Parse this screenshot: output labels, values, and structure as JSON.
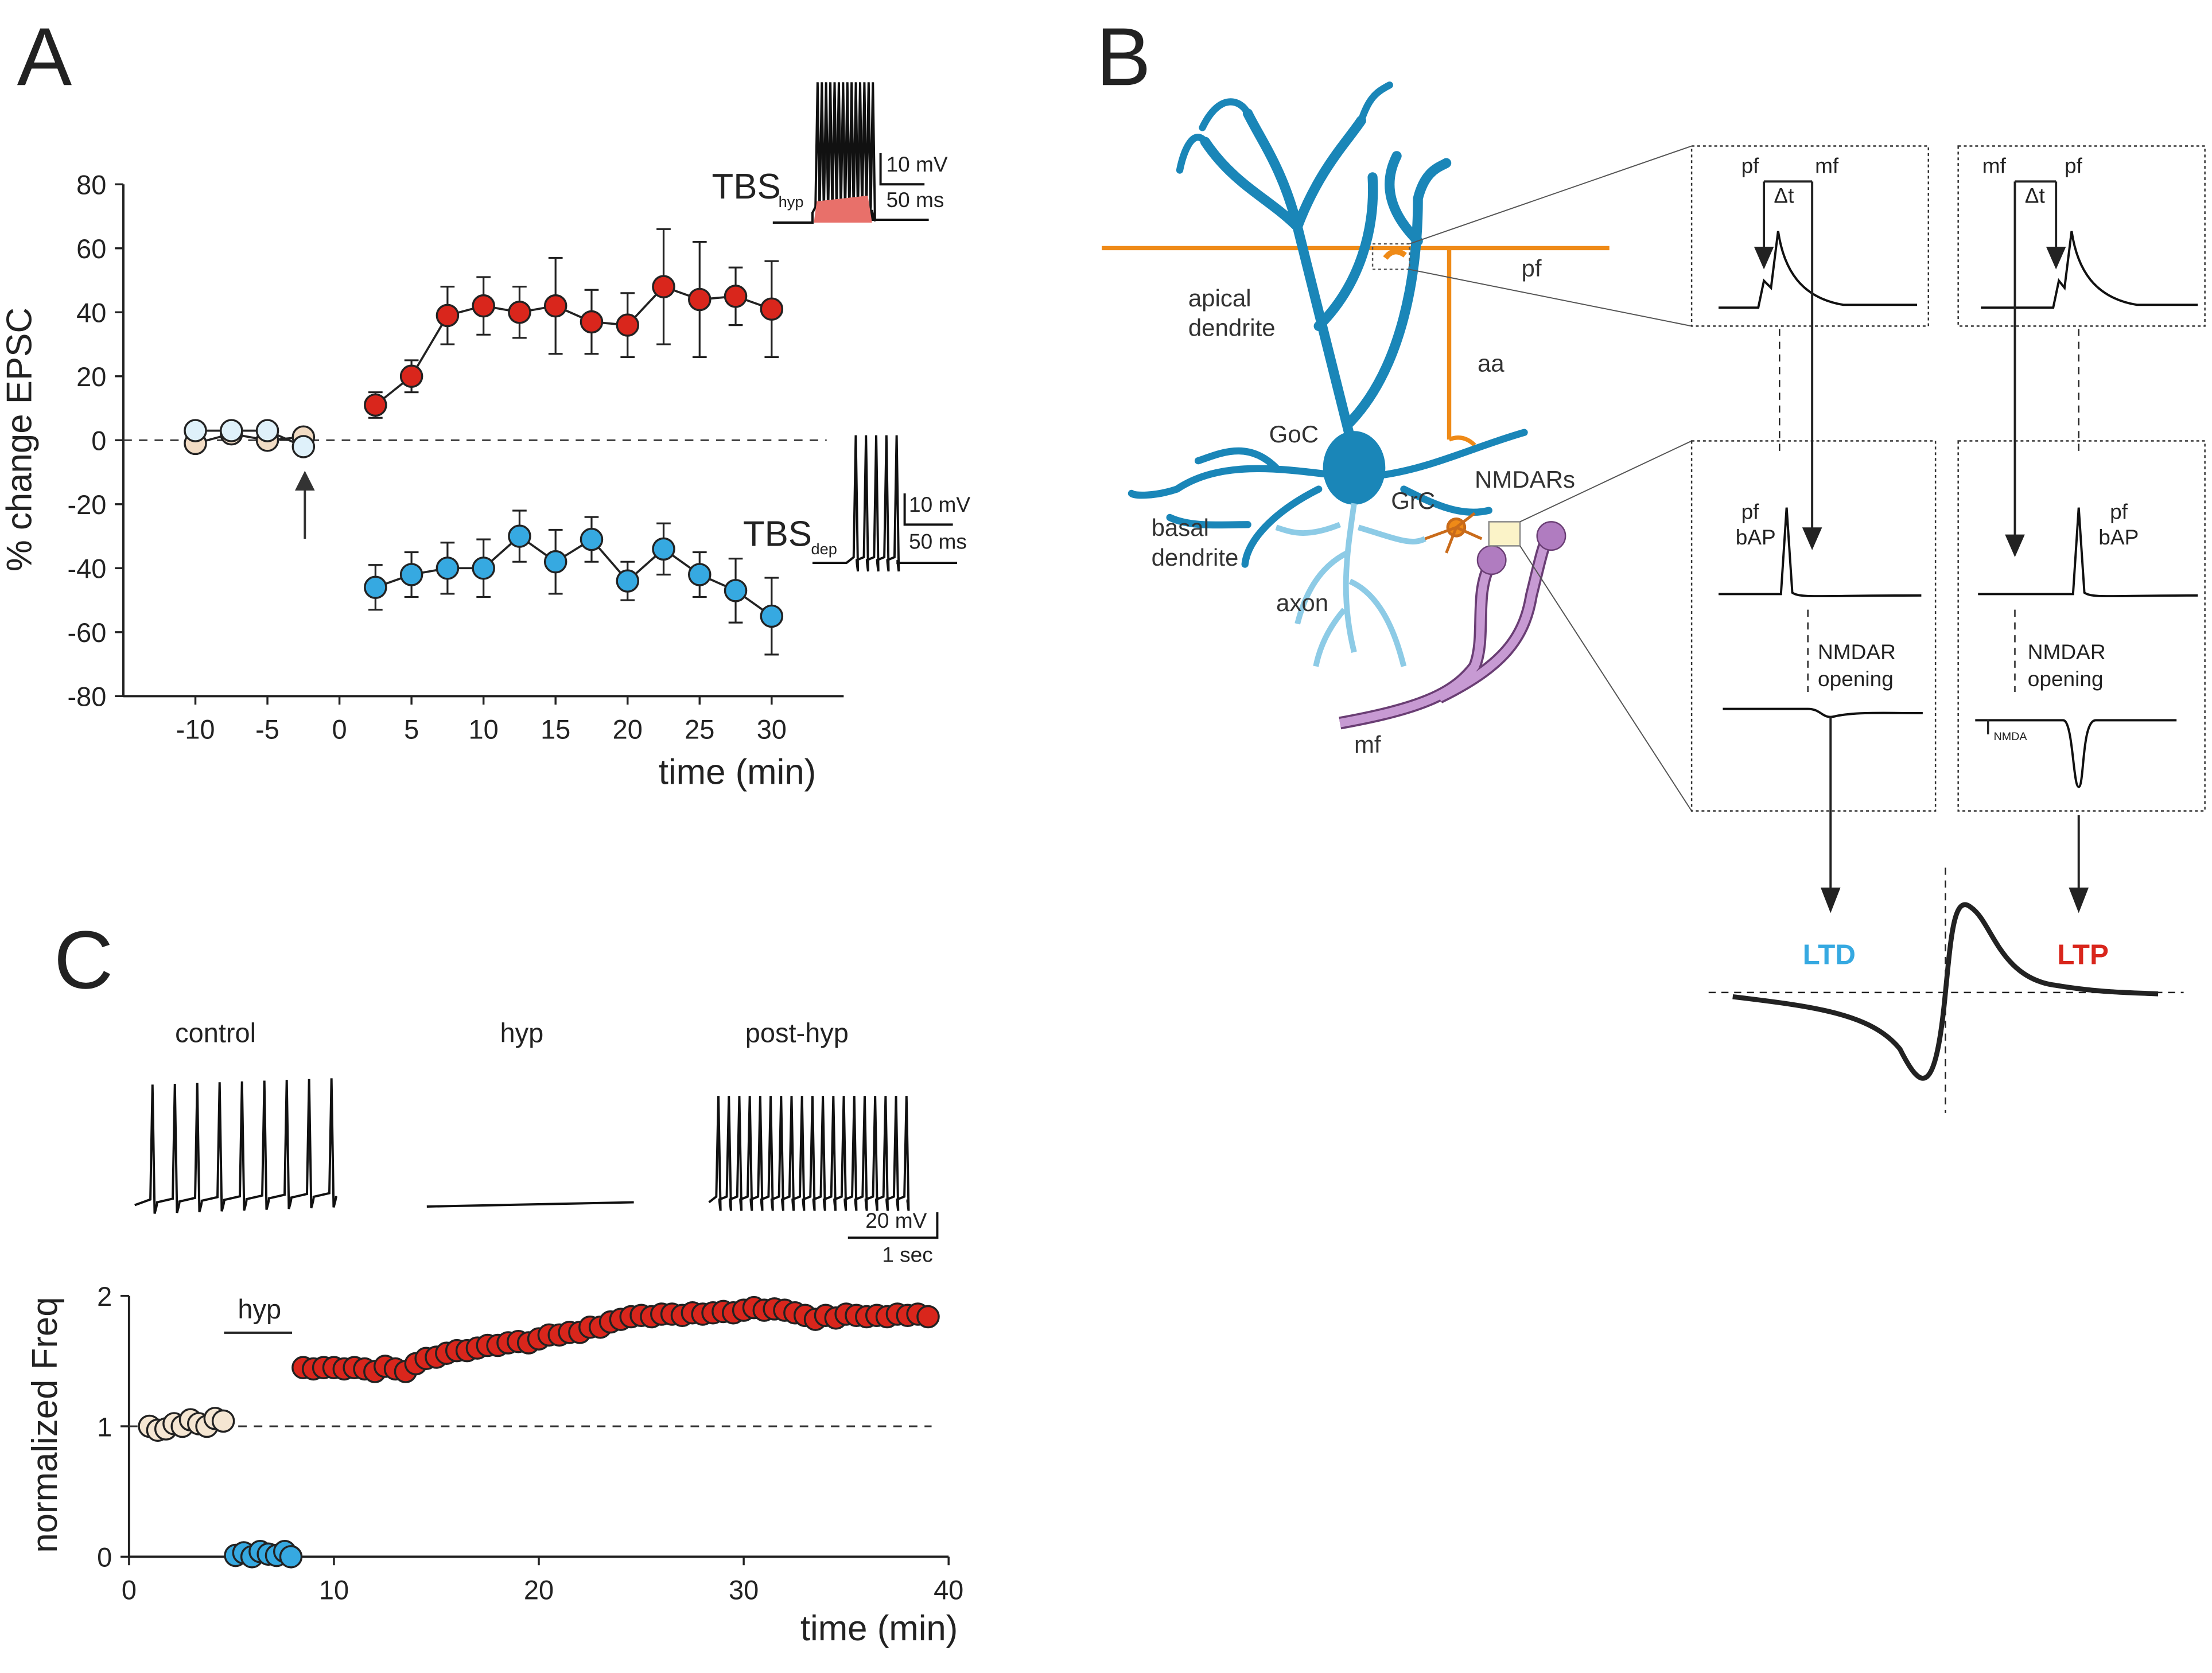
{
  "panels": [
    "A",
    "B",
    "C"
  ],
  "chart_data": [
    {
      "type": "scatter",
      "line": true,
      "ylabel": "% change EPSC",
      "xlabel": "time (min)",
      "xlim": [
        -15,
        35
      ],
      "xticks": [
        -10,
        -5,
        0,
        5,
        10,
        15,
        20,
        25,
        30
      ],
      "ylim": [
        -80,
        80
      ],
      "yticks": [
        -80,
        -60,
        -40,
        -20,
        0,
        20,
        40,
        60,
        80
      ],
      "hline": 0,
      "annotations": [
        "TBS",
        "hyp",
        "10 mV",
        "50 ms",
        "TBS",
        "dep",
        "10 mV",
        "50 ms"
      ],
      "series": [
        {
          "color": "#f2dcc4",
          "x": [
            -10,
            -7.5,
            -5,
            -2.5
          ],
          "values": [
            -1,
            2,
            0,
            1
          ]
        },
        {
          "color": "#dff1fa",
          "x": [
            -10,
            -7.5,
            -5,
            -2.5
          ],
          "values": [
            3,
            3,
            3,
            -2
          ]
        },
        {
          "color": "#d9261c",
          "x": [
            2.5,
            5,
            7.5,
            10,
            12.5,
            15,
            17.5,
            20,
            22.5,
            25,
            27.5,
            30
          ],
          "values": [
            11,
            20,
            39,
            42,
            40,
            42,
            37,
            36,
            48,
            44,
            45,
            41
          ],
          "errors": [
            4,
            5,
            9,
            9,
            8,
            15,
            10,
            10,
            18,
            18,
            9,
            15
          ]
        },
        {
          "color": "#36a9e1",
          "x": [
            2.5,
            5,
            7.5,
            10,
            12.5,
            15,
            17.5,
            20,
            22.5,
            25,
            27.5,
            30
          ],
          "values": [
            -46,
            -42,
            -40,
            -40,
            -30,
            -38,
            -31,
            -44,
            -34,
            -42,
            -47,
            -55
          ],
          "errors": [
            7,
            7,
            8,
            9,
            8,
            10,
            7,
            6,
            8,
            7,
            10,
            12
          ]
        }
      ]
    },
    {
      "type": "scatter",
      "line": false,
      "ylabel": "normalized Freq",
      "xlabel": "time (min)",
      "xlim": [
        0,
        40
      ],
      "xticks": [
        0,
        10,
        20,
        30,
        40
      ],
      "ylim": [
        0,
        2
      ],
      "yticks": [
        0,
        1,
        2
      ],
      "hline": 1,
      "annotations": [
        "hyp",
        "control",
        "hyp",
        "post-hyp",
        "20 mV",
        "1 sec"
      ],
      "series": [
        {
          "color": "#f5e6d2",
          "x": [
            1,
            1.4,
            1.8,
            2.2,
            2.6,
            3,
            3.4,
            3.8,
            4.2,
            4.6
          ],
          "values": [
            1.0,
            0.97,
            0.98,
            1.02,
            1.0,
            1.05,
            1.02,
            1.0,
            1.06,
            1.04
          ]
        },
        {
          "color": "#36a9e1",
          "x": [
            5.2,
            5.6,
            6,
            6.4,
            6.8,
            7.2,
            7.6,
            7.9
          ],
          "values": [
            0.01,
            0.03,
            0,
            0.04,
            0.02,
            0.01,
            0.04,
            0
          ]
        },
        {
          "color": "#d9261c",
          "x": [
            8.5,
            9,
            9.5,
            10,
            10.5,
            11,
            11.5,
            12,
            12.5,
            13,
            13.5,
            14,
            14.5,
            15,
            15.5,
            16,
            16.5,
            17,
            17.5,
            18,
            18.5,
            19,
            19.5,
            20,
            20.5,
            21,
            21.5,
            22,
            22.5,
            23,
            23.5,
            24,
            24.5,
            25,
            25.5,
            26,
            26.5,
            27,
            27.5,
            28,
            28.5,
            29,
            29.5,
            30,
            30.5,
            31,
            31.5,
            32,
            32.5,
            33,
            33.5,
            34,
            34.5,
            35,
            35.5,
            36,
            36.5,
            37,
            37.5,
            38,
            38.5,
            39
          ],
          "values": [
            1.45,
            1.44,
            1.45,
            1.45,
            1.44,
            1.45,
            1.44,
            1.42,
            1.46,
            1.44,
            1.42,
            1.48,
            1.52,
            1.53,
            1.56,
            1.58,
            1.58,
            1.6,
            1.62,
            1.62,
            1.64,
            1.65,
            1.64,
            1.67,
            1.7,
            1.7,
            1.72,
            1.72,
            1.76,
            1.76,
            1.8,
            1.82,
            1.84,
            1.85,
            1.84,
            1.86,
            1.86,
            1.85,
            1.87,
            1.86,
            1.87,
            1.88,
            1.87,
            1.89,
            1.91,
            1.89,
            1.9,
            1.89,
            1.87,
            1.85,
            1.82,
            1.85,
            1.83,
            1.86,
            1.85,
            1.84,
            1.85,
            1.84,
            1.86,
            1.85,
            1.86,
            1.84
          ]
        }
      ]
    }
  ],
  "diagram": {
    "cell": [
      "apical",
      "dendrite",
      "GoC",
      "basal",
      "dendrite",
      "axon",
      "GrC",
      "NMDARs",
      "aa",
      "pf",
      "mf"
    ],
    "box1": [
      "pf",
      "mf",
      "Δt"
    ],
    "box2": [
      "mf",
      "pf",
      "Δt"
    ],
    "box3": [
      "pf",
      "bAP",
      "NMDAR",
      "opening"
    ],
    "box4": [
      "pf",
      "bAP",
      "NMDAR",
      "opening",
      "I",
      "NMDA"
    ],
    "outcome": [
      "LTD",
      "LTP"
    ]
  }
}
